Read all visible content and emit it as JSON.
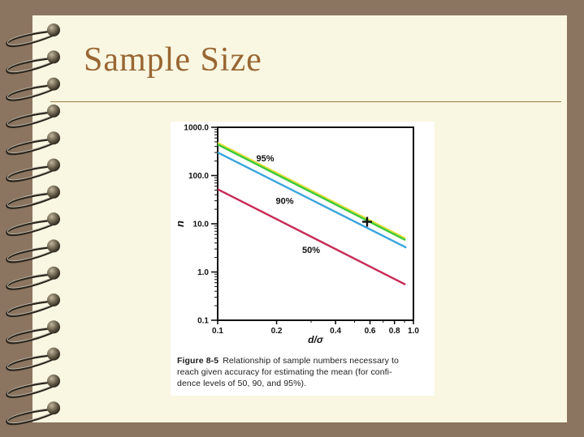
{
  "slide": {
    "title": "Sample Size"
  },
  "colors": {
    "background": "#8b7560",
    "page": "#f9f7e2",
    "title_text": "#996633",
    "title_rule": "#9a7a45",
    "panel": "#ffffff",
    "axis": "#111111",
    "line_95": "#3cc83c",
    "line_95_edge": "#e4e03a",
    "line_90": "#39a4dc",
    "line_50": "#c82a55"
  },
  "chart_data": {
    "type": "line",
    "title": "",
    "xlabel": "d/σ",
    "ylabel": "n",
    "x_scale": "log",
    "y_scale": "log",
    "xlim": [
      0.1,
      1.0
    ],
    "ylim": [
      0.1,
      1000.0
    ],
    "grid": false,
    "legend_position": "inline-labels",
    "x_ticks": [
      0.1,
      0.2,
      0.4,
      0.6,
      0.8,
      1.0
    ],
    "x_tick_labels": [
      "0.1",
      "0.2",
      "0.4",
      "0.6",
      "0.8",
      "1.0"
    ],
    "x_minor_ticks": [
      0.3,
      0.5,
      0.7,
      0.9
    ],
    "y_ticks": [
      1000.0,
      100.0,
      10.0,
      1.0,
      0.1
    ],
    "y_tick_labels": [
      "1000.0",
      "100.0",
      "10.0",
      "1.0",
      "0.1"
    ],
    "series": [
      {
        "name": "95%",
        "color": "#3cc83c",
        "edge_color": "#e4e03a",
        "x": [
          0.1,
          0.91
        ],
        "y": [
          440,
          4.6
        ],
        "label_x": 0.175,
        "label_y": 230
      },
      {
        "name": "90%",
        "color": "#39a4dc",
        "x": [
          0.1,
          0.92
        ],
        "y": [
          300,
          3.2
        ],
        "label_x": 0.22,
        "label_y": 30
      },
      {
        "name": "50%",
        "color": "#c82a55",
        "x": [
          0.1,
          0.91
        ],
        "y": [
          52,
          0.55
        ],
        "label_x": 0.3,
        "label_y": 2.9
      }
    ],
    "marker": {
      "symbol": "+",
      "x": 0.58,
      "y": 11
    }
  },
  "caption": {
    "label": "Figure 8-5",
    "line1": "Relationship of sample numbers necessary to",
    "line2": "reach given accuracy for estimating the mean (for confi-",
    "line3": "dence levels of 50, 90, and 95%)."
  }
}
